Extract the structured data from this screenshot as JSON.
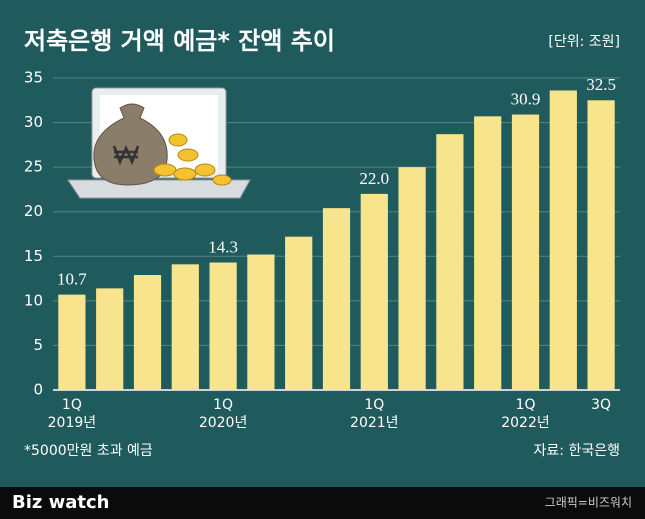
{
  "chart_data": {
    "type": "bar",
    "title": "저축은행 거액 예금* 잔액 추이",
    "unit_label": "[단위: 조원]",
    "categories": [
      "1Q",
      null,
      null,
      null,
      "1Q",
      null,
      null,
      null,
      "1Q",
      null,
      null,
      null,
      "1Q",
      null,
      "3Q"
    ],
    "year_labels": [
      "2019년",
      null,
      null,
      null,
      "2020년",
      null,
      null,
      null,
      "2021년",
      null,
      null,
      null,
      "2022년",
      null,
      null
    ],
    "values": [
      10.7,
      11.4,
      12.9,
      14.1,
      14.3,
      15.2,
      17.2,
      20.4,
      22.0,
      25.0,
      28.7,
      30.7,
      30.9,
      33.6,
      32.5
    ],
    "value_labels": [
      "10.7",
      null,
      null,
      null,
      "14.3",
      null,
      null,
      null,
      "22.0",
      null,
      null,
      null,
      "30.9",
      null,
      "32.5"
    ],
    "color": "#f7e48c",
    "ylim": [
      0,
      35
    ],
    "yticks": [
      0,
      5,
      10,
      15,
      20,
      25,
      30,
      35
    ],
    "grid": true,
    "footnote": "*5000만원 초과 예금",
    "source": "자료: 한국은행",
    "logo": "Biz watch",
    "credit": "그래픽=비즈워치"
  }
}
